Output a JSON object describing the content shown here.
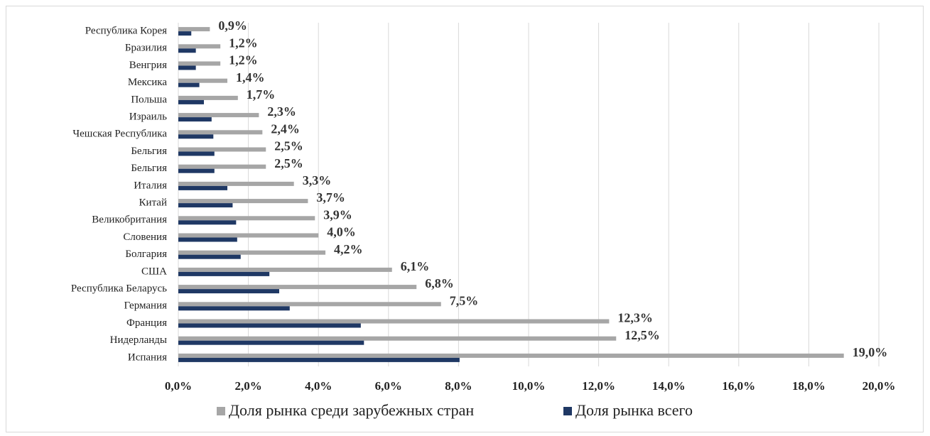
{
  "chart_data": {
    "type": "bar",
    "orientation": "horizontal",
    "categories": [
      "Республика Корея",
      "Бразилия",
      "Венгрия",
      "Мексика",
      "Польша",
      "Израиль",
      "Чешская Республика",
      "Бельгия",
      "Бельгия",
      "Италия",
      "Китай",
      "Великобритания",
      "Словения",
      "Болгария",
      "США",
      "Республика Беларусь",
      "Германия",
      "Франция",
      "Нидерланды",
      "Испания"
    ],
    "series": [
      {
        "name": "Доля рынка среди зарубежных стран",
        "color": "#a6a6a6",
        "values": [
          0.9,
          1.2,
          1.2,
          1.4,
          1.7,
          2.3,
          2.4,
          2.5,
          2.5,
          3.3,
          3.7,
          3.9,
          4.0,
          4.2,
          6.1,
          6.8,
          7.5,
          12.3,
          12.5,
          19.0
        ],
        "value_labels": [
          "0,9%",
          "1,2%",
          "1,2%",
          "1,4%",
          "1,7%",
          "2,3%",
          "2,4%",
          "2,5%",
          "2,5%",
          "3,3%",
          "3,7%",
          "3,9%",
          "4,0%",
          "4,2%",
          "6,1%",
          "6,8%",
          "7,5%",
          "12,3%",
          "12,5%",
          "19,0%"
        ]
      },
      {
        "name": "Доля рынка всего",
        "color": "#1f3864",
        "values": [
          0.37,
          0.5,
          0.5,
          0.6,
          0.73,
          0.95,
          1.0,
          1.03,
          1.03,
          1.4,
          1.55,
          1.65,
          1.68,
          1.78,
          2.6,
          2.88,
          3.18,
          5.21,
          5.3,
          8.03
        ]
      }
    ],
    "xlim": [
      0,
      20
    ],
    "xticks": [
      {
        "value": 0,
        "label": "0,0%"
      },
      {
        "value": 2,
        "label": "2,0%"
      },
      {
        "value": 4,
        "label": "4,0%"
      },
      {
        "value": 6,
        "label": "6,0%"
      },
      {
        "value": 8,
        "label": "8,0%"
      },
      {
        "value": 10,
        "label": "10,0%"
      },
      {
        "value": 12,
        "label": "12,0%"
      },
      {
        "value": 14,
        "label": "14,0%"
      },
      {
        "value": 16,
        "label": "16,0%"
      },
      {
        "value": 18,
        "label": "18,0%"
      },
      {
        "value": 20,
        "label": "20,0%"
      }
    ],
    "grid": true,
    "legend": "bottom"
  }
}
